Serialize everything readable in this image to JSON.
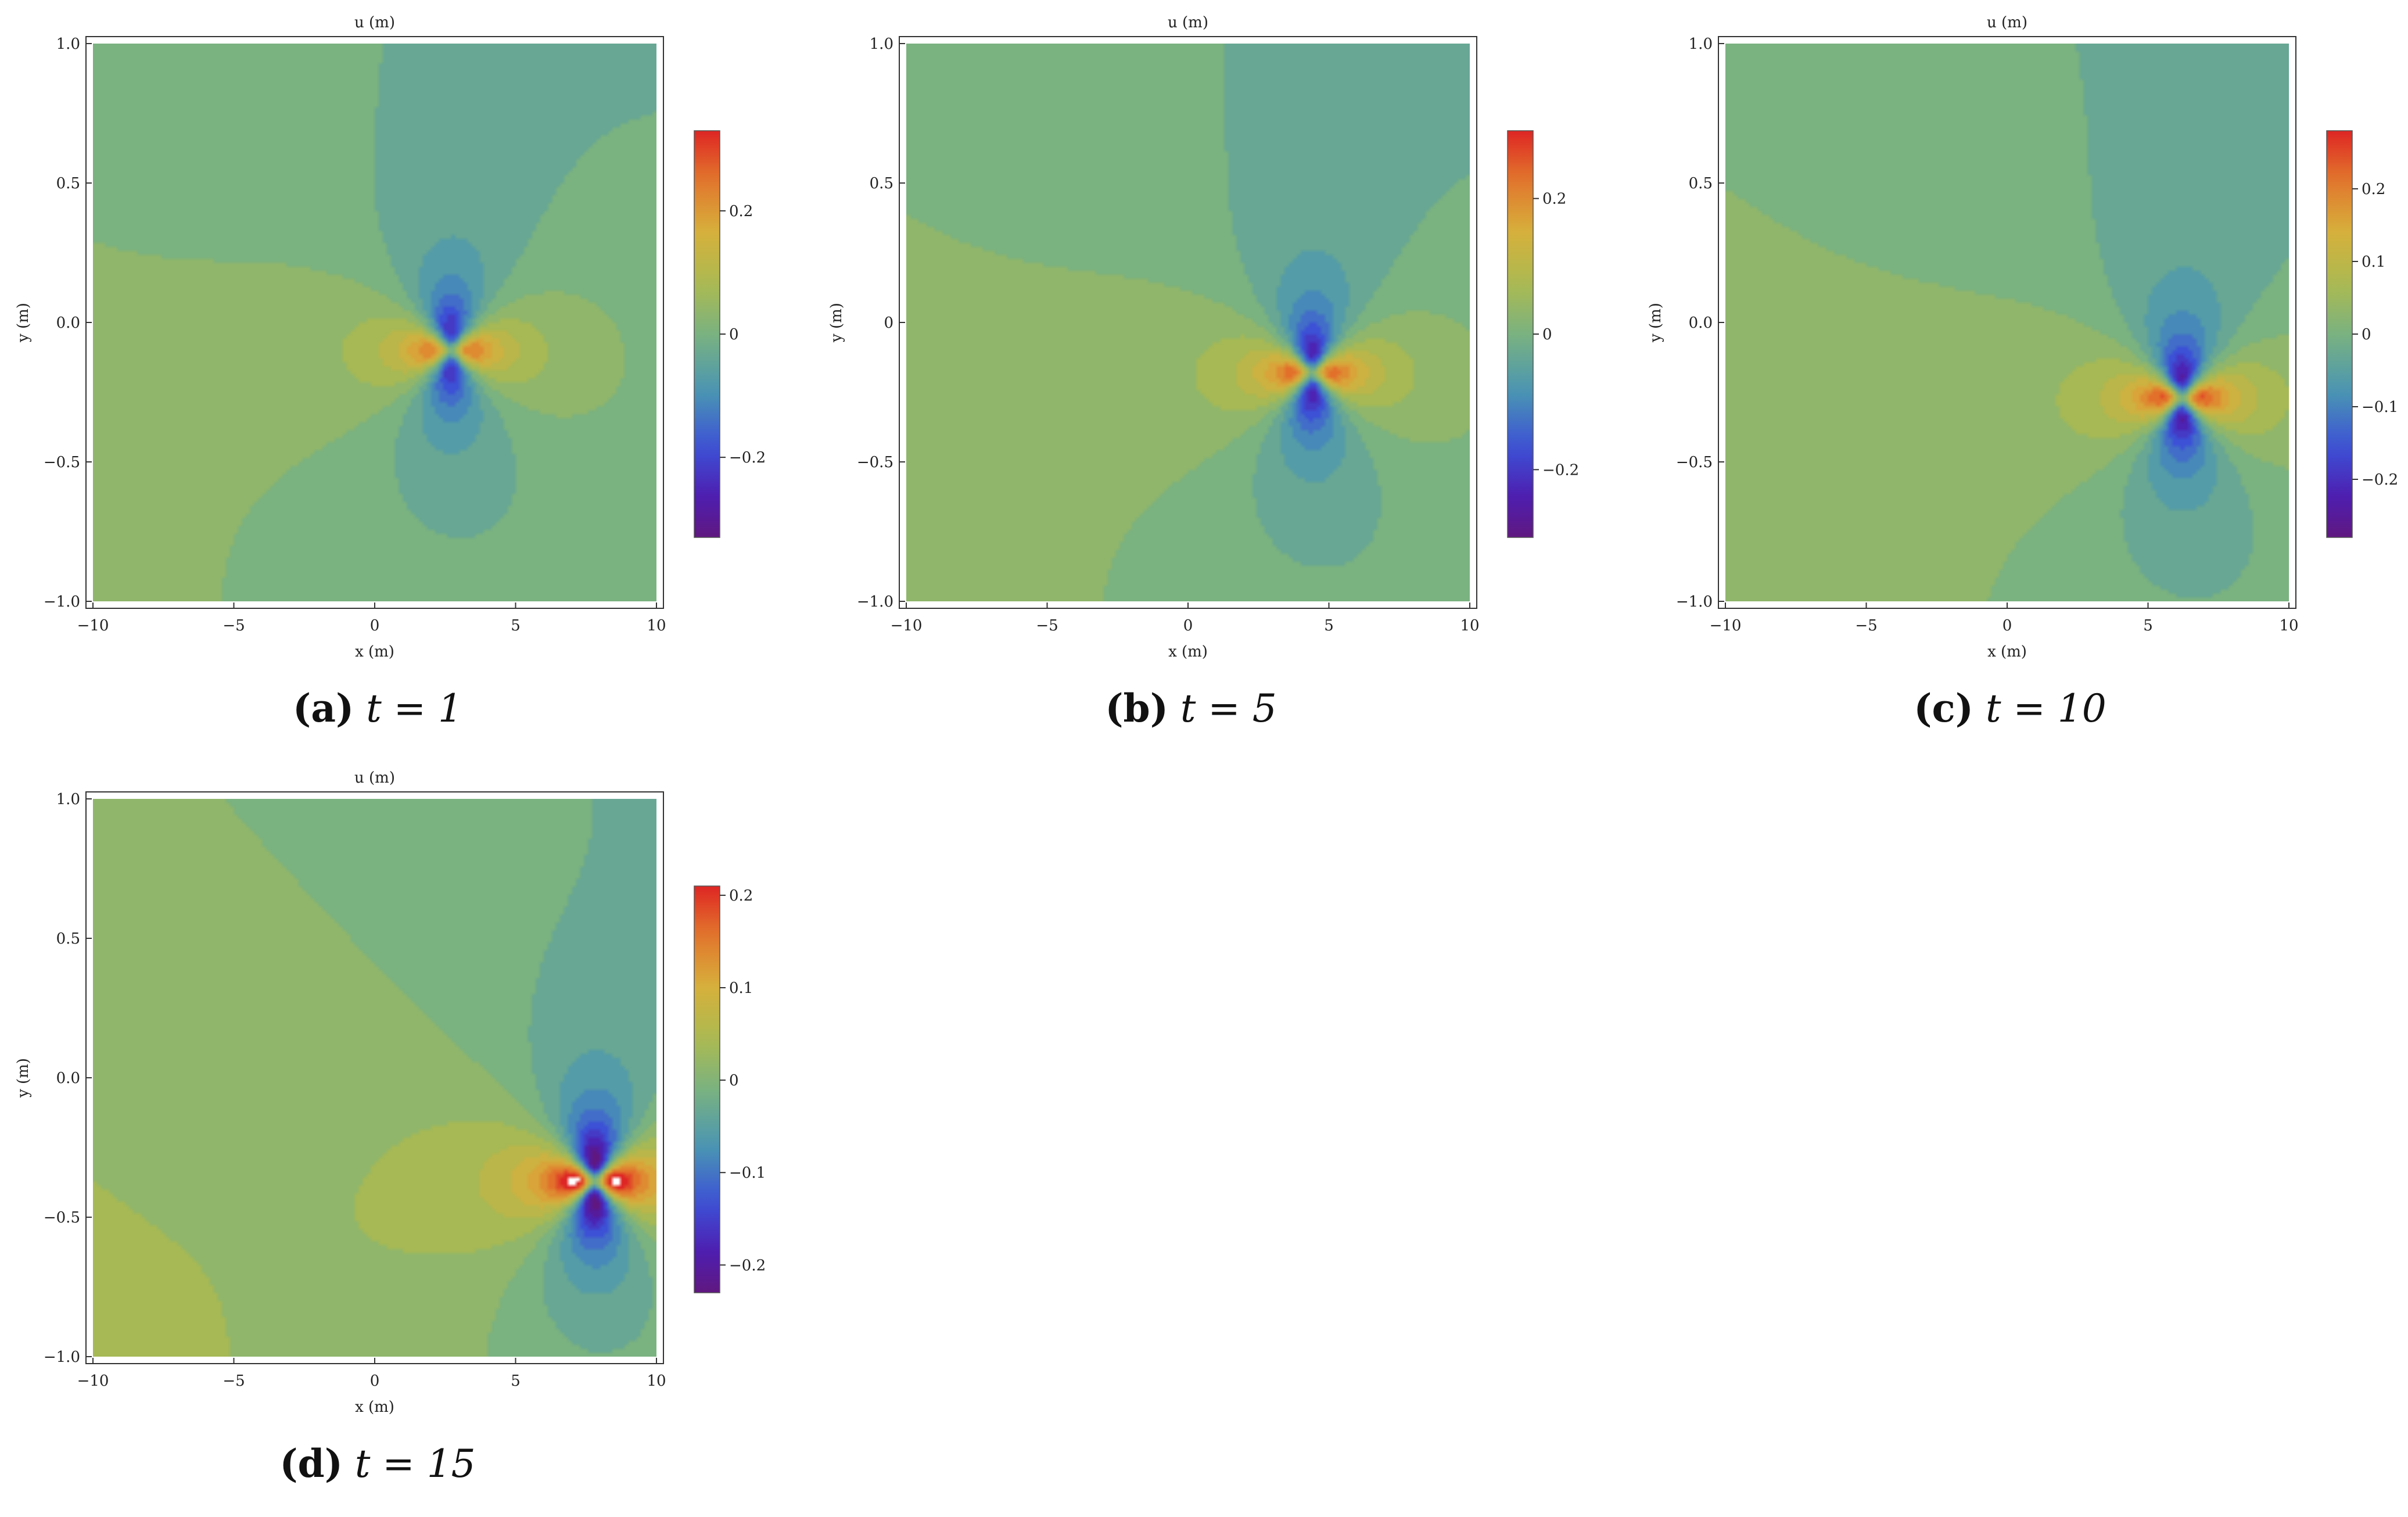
{
  "figure": {
    "panels": [
      {
        "label": "(a)",
        "caption_eq": "t = 1",
        "title": "u (m)",
        "xlabel": "x (m)",
        "ylabel": "y (m)"
      },
      {
        "label": "(b)",
        "caption_eq": "t = 5",
        "title": "u (m)",
        "xlabel": "x (m)",
        "ylabel": "y (m)"
      },
      {
        "label": "(c)",
        "caption_eq": "t = 10",
        "title": "u (m)",
        "xlabel": "x (m)",
        "ylabel": "y (m)"
      },
      {
        "label": "(d)",
        "caption_eq": "t = 15",
        "title": "u (m)",
        "xlabel": "x (m)",
        "ylabel": "y (m)"
      }
    ]
  },
  "chart_data": [
    {
      "type": "heatmap",
      "title": "u (m)",
      "xlabel": "x (m)",
      "ylabel": "y (m)",
      "time": 1,
      "xlim": [
        -10,
        10
      ],
      "ylim": [
        -1,
        1
      ],
      "xticks": [
        "−10",
        "−5",
        "0",
        "5",
        "10"
      ],
      "yticks": [
        "−1.0",
        "−0.5",
        "0.0",
        "0.5",
        "1.0"
      ],
      "colorbar": {
        "range": [
          -0.33,
          0.33
        ],
        "ticks": [
          0.2,
          0,
          -0.2
        ],
        "tick_labels": [
          "0.2",
          "0",
          "−0.2"
        ]
      },
      "center": {
        "x": 2.7,
        "y": -0.1
      }
    },
    {
      "type": "heatmap",
      "title": "u (m)",
      "xlabel": "x (m)",
      "ylabel": "y (m)",
      "time": 5,
      "xlim": [
        -10,
        10
      ],
      "ylim": [
        -1,
        1
      ],
      "xticks": [
        "−10",
        "−5",
        "0",
        "5",
        "10"
      ],
      "yticks": [
        "−1.0",
        "−0.5",
        "0",
        "0.5",
        "1.0"
      ],
      "colorbar": {
        "range": [
          -0.3,
          0.3
        ],
        "ticks": [
          0.2,
          0,
          -0.2
        ],
        "tick_labels": [
          "0.2",
          "0",
          "−0.2"
        ]
      },
      "center": {
        "x": 4.4,
        "y": -0.18
      }
    },
    {
      "type": "heatmap",
      "title": "u (m)",
      "xlabel": "x (m)",
      "ylabel": "y (m)",
      "time": 10,
      "xlim": [
        -10,
        10
      ],
      "ylim": [
        -1,
        1
      ],
      "xticks": [
        "−10",
        "−5",
        "0",
        "5",
        "10"
      ],
      "yticks": [
        "−1.0",
        "−0.5",
        "0.0",
        "0.5",
        "1.0"
      ],
      "colorbar": {
        "range": [
          -0.28,
          0.28
        ],
        "ticks": [
          0.2,
          0.1,
          0,
          -0.1,
          -0.2
        ],
        "tick_labels": [
          "0.2",
          "0.1",
          "0",
          "−0.1",
          "−0.2"
        ]
      },
      "center": {
        "x": 6.2,
        "y": -0.27
      }
    },
    {
      "type": "heatmap",
      "title": "u (m)",
      "xlabel": "x (m)",
      "ylabel": "y (m)",
      "time": 15,
      "xlim": [
        -10,
        10
      ],
      "ylim": [
        -1,
        1
      ],
      "xticks": [
        "−10",
        "−5",
        "0",
        "5",
        "10"
      ],
      "yticks": [
        "−1.0",
        "−0.5",
        "0.0",
        "0.5",
        "1.0"
      ],
      "colorbar": {
        "range": [
          -0.23,
          0.21
        ],
        "ticks": [
          0.2,
          0.1,
          0,
          -0.1,
          -0.2
        ],
        "tick_labels": [
          "0.2",
          "0.1",
          "0",
          "−0.1",
          "−0.2"
        ]
      },
      "center": {
        "x": 7.8,
        "y": -0.37
      }
    }
  ]
}
